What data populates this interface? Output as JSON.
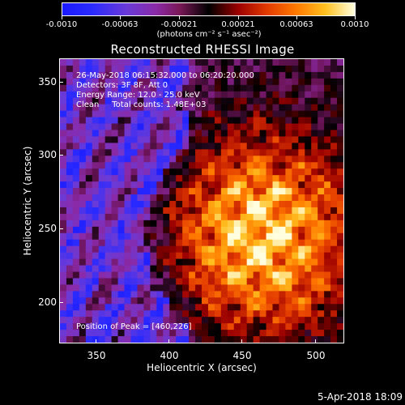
{
  "colorbar": {
    "tick_labels": [
      "-0.0010",
      "-0.00063",
      "-0.00021",
      "0.00021",
      "0.00063",
      "0.0010"
    ],
    "units": "(photons cm⁻² s⁻¹ asec⁻²)"
  },
  "plot": {
    "title": "Reconstructed RHESSI Image",
    "xlabel": "Heliocentric X (arcsec)",
    "ylabel": "Heliocentric Y (arcsec)",
    "x_ticks": [
      "350",
      "400",
      "450",
      "500"
    ],
    "y_ticks": [
      "350",
      "300",
      "250",
      "200"
    ],
    "x_range": [
      327,
      520
    ],
    "y_range": [
      172,
      366
    ]
  },
  "info": {
    "time": "26-May-2018 06:15:32.000 to 06:20:20.000",
    "detectors": "Detectors: 3F 8F, Att 0",
    "energy": "Energy Range: 12.0 - 25.0 keV",
    "clean": "Clean     Total counts: 1.48E+03",
    "peak": "Position of Peak = [460,226]"
  },
  "datestamp": "5-Apr-2018 18:09",
  "colors": {
    "negative": "#2a2aff",
    "mid": "#000000",
    "positive": "#ffffe0"
  }
}
